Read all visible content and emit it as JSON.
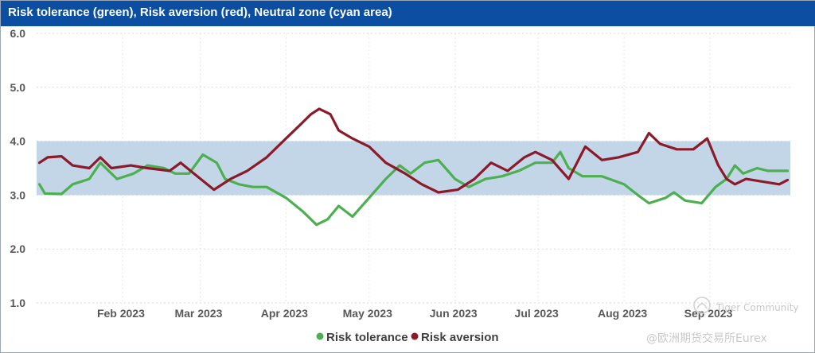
{
  "chart_data": {
    "type": "line",
    "title": "Risk tolerance (green), Risk aversion (red), Neutral zone (cyan area)",
    "xlabel": "",
    "ylabel": "",
    "ylim": [
      1.0,
      6.0
    ],
    "y_ticks": [
      "6.0",
      "5.0",
      "4.0",
      "3.0",
      "2.0",
      "1.0"
    ],
    "x_range": [
      "2023-01-01",
      "2023-09-30"
    ],
    "x_ticks": [
      {
        "date": "2023-02-01",
        "label": "Feb 2023"
      },
      {
        "date": "2023-03-01",
        "label": "Mar 2023"
      },
      {
        "date": "2023-04-01",
        "label": "Apr 2023"
      },
      {
        "date": "2023-05-01",
        "label": "May 2023"
      },
      {
        "date": "2023-06-01",
        "label": "Jun 2023"
      },
      {
        "date": "2023-07-01",
        "label": "Jul 2023"
      },
      {
        "date": "2023-08-01",
        "label": "Aug 2023"
      },
      {
        "date": "2023-09-01",
        "label": "Sep 2023"
      }
    ],
    "grid": true,
    "neutral_zone": [
      3.0,
      4.0
    ],
    "colors": {
      "tolerance": "#4caf50",
      "aversion": "#8b1a2b",
      "zone": "#c2d6e8",
      "title_bg": "#0b4ea2"
    },
    "legend_position": "bottom",
    "series": [
      {
        "name": "Risk tolerance",
        "color": "#4caf50",
        "points": [
          [
            "2023-01-02",
            3.2
          ],
          [
            "2023-01-04",
            3.03
          ],
          [
            "2023-01-10",
            3.02
          ],
          [
            "2023-01-14",
            3.2
          ],
          [
            "2023-01-20",
            3.3
          ],
          [
            "2023-01-24",
            3.6
          ],
          [
            "2023-01-30",
            3.3
          ],
          [
            "2023-02-05",
            3.4
          ],
          [
            "2023-02-10",
            3.55
          ],
          [
            "2023-02-16",
            3.5
          ],
          [
            "2023-02-20",
            3.4
          ],
          [
            "2023-02-25",
            3.4
          ],
          [
            "2023-03-02",
            3.75
          ],
          [
            "2023-03-07",
            3.6
          ],
          [
            "2023-03-10",
            3.3
          ],
          [
            "2023-03-15",
            3.2
          ],
          [
            "2023-03-20",
            3.15
          ],
          [
            "2023-03-25",
            3.15
          ],
          [
            "2023-04-01",
            2.95
          ],
          [
            "2023-04-07",
            2.7
          ],
          [
            "2023-04-12",
            2.45
          ],
          [
            "2023-04-16",
            2.55
          ],
          [
            "2023-04-20",
            2.8
          ],
          [
            "2023-04-25",
            2.6
          ],
          [
            "2023-05-01",
            2.95
          ],
          [
            "2023-05-07",
            3.3
          ],
          [
            "2023-05-12",
            3.55
          ],
          [
            "2023-05-16",
            3.4
          ],
          [
            "2023-05-21",
            3.6
          ],
          [
            "2023-05-26",
            3.65
          ],
          [
            "2023-06-01",
            3.3
          ],
          [
            "2023-06-06",
            3.15
          ],
          [
            "2023-06-12",
            3.3
          ],
          [
            "2023-06-18",
            3.35
          ],
          [
            "2023-06-24",
            3.45
          ],
          [
            "2023-06-30",
            3.6
          ],
          [
            "2023-07-06",
            3.6
          ],
          [
            "2023-07-09",
            3.8
          ],
          [
            "2023-07-12",
            3.5
          ],
          [
            "2023-07-17",
            3.35
          ],
          [
            "2023-07-24",
            3.35
          ],
          [
            "2023-08-01",
            3.2
          ],
          [
            "2023-08-06",
            3.0
          ],
          [
            "2023-08-10",
            2.85
          ],
          [
            "2023-08-16",
            2.95
          ],
          [
            "2023-08-19",
            3.05
          ],
          [
            "2023-08-23",
            2.9
          ],
          [
            "2023-08-29",
            2.85
          ],
          [
            "2023-09-03",
            3.15
          ],
          [
            "2023-09-07",
            3.3
          ],
          [
            "2023-09-10",
            3.55
          ],
          [
            "2023-09-13",
            3.4
          ],
          [
            "2023-09-18",
            3.5
          ],
          [
            "2023-09-22",
            3.45
          ],
          [
            "2023-09-26",
            3.45
          ],
          [
            "2023-09-29",
            3.45
          ]
        ]
      },
      {
        "name": "Risk aversion",
        "color": "#8b1a2b",
        "points": [
          [
            "2023-01-02",
            3.6
          ],
          [
            "2023-01-05",
            3.7
          ],
          [
            "2023-01-10",
            3.72
          ],
          [
            "2023-01-14",
            3.55
          ],
          [
            "2023-01-20",
            3.5
          ],
          [
            "2023-01-24",
            3.7
          ],
          [
            "2023-01-28",
            3.5
          ],
          [
            "2023-02-04",
            3.55
          ],
          [
            "2023-02-10",
            3.5
          ],
          [
            "2023-02-18",
            3.45
          ],
          [
            "2023-02-22",
            3.6
          ],
          [
            "2023-02-28",
            3.35
          ],
          [
            "2023-03-06",
            3.1
          ],
          [
            "2023-03-12",
            3.3
          ],
          [
            "2023-03-18",
            3.45
          ],
          [
            "2023-03-25",
            3.7
          ],
          [
            "2023-04-01",
            4.05
          ],
          [
            "2023-04-06",
            4.3
          ],
          [
            "2023-04-10",
            4.5
          ],
          [
            "2023-04-13",
            4.6
          ],
          [
            "2023-04-17",
            4.5
          ],
          [
            "2023-04-20",
            4.2
          ],
          [
            "2023-04-25",
            4.05
          ],
          [
            "2023-05-01",
            3.9
          ],
          [
            "2023-05-07",
            3.6
          ],
          [
            "2023-05-14",
            3.4
          ],
          [
            "2023-05-20",
            3.2
          ],
          [
            "2023-05-26",
            3.05
          ],
          [
            "2023-06-02",
            3.1
          ],
          [
            "2023-06-08",
            3.3
          ],
          [
            "2023-06-14",
            3.6
          ],
          [
            "2023-06-20",
            3.45
          ],
          [
            "2023-06-26",
            3.7
          ],
          [
            "2023-06-30",
            3.8
          ],
          [
            "2023-07-06",
            3.65
          ],
          [
            "2023-07-12",
            3.3
          ],
          [
            "2023-07-18",
            3.9
          ],
          [
            "2023-07-24",
            3.65
          ],
          [
            "2023-07-30",
            3.7
          ],
          [
            "2023-08-06",
            3.8
          ],
          [
            "2023-08-10",
            4.15
          ],
          [
            "2023-08-14",
            3.95
          ],
          [
            "2023-08-20",
            3.85
          ],
          [
            "2023-08-26",
            3.85
          ],
          [
            "2023-08-31",
            4.05
          ],
          [
            "2023-09-04",
            3.55
          ],
          [
            "2023-09-07",
            3.3
          ],
          [
            "2023-09-10",
            3.2
          ],
          [
            "2023-09-14",
            3.3
          ],
          [
            "2023-09-20",
            3.25
          ],
          [
            "2023-09-26",
            3.2
          ],
          [
            "2023-09-29",
            3.28
          ]
        ]
      }
    ]
  },
  "watermark": {
    "line1": "Tiger Community",
    "line2": "@欧洲期货交易所Eurex"
  }
}
